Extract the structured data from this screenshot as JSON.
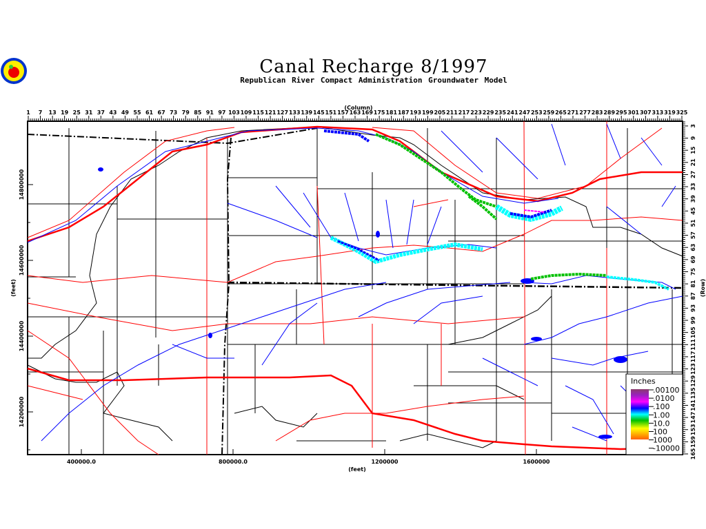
{
  "title": "Canal Recharge 8/1997",
  "subtitle": "Republican River Compact Administration Groundwater Model",
  "logo": "apple-seal-logo",
  "top_axis": {
    "label": "(Column)",
    "ticks": [
      "1",
      "7",
      "13",
      "19",
      "25",
      "31",
      "37",
      "43",
      "49",
      "55",
      "61",
      "67",
      "73",
      "79",
      "85",
      "91",
      "97",
      "103",
      "109",
      "115",
      "121",
      "127",
      "133",
      "139",
      "145",
      "151",
      "157",
      "163",
      "169",
      "175",
      "181",
      "187",
      "193",
      "199",
      "205",
      "211",
      "217",
      "223",
      "229",
      "235",
      "241",
      "247",
      "253",
      "259",
      "265",
      "271",
      "277",
      "283",
      "289",
      "295",
      "301",
      "307",
      "313",
      "319",
      "325"
    ]
  },
  "right_axis": {
    "label": "(Row)",
    "ticks": [
      "3",
      "9",
      "15",
      "21",
      "27",
      "33",
      "39",
      "45",
      "51",
      "57",
      "63",
      "69",
      "75",
      "81",
      "87",
      "93",
      "99",
      "105",
      "111",
      "117",
      "123",
      "129",
      "135",
      "141",
      "147",
      "153",
      "159",
      "165"
    ]
  },
  "left_axis": {
    "label": "(feet)",
    "ticks": [
      "14800000",
      "14600000",
      "14400000",
      "14200000"
    ]
  },
  "bottom_axis": {
    "label": "(feet)",
    "ticks": [
      "400000.0",
      "800000.0",
      "1200000",
      "1600000"
    ]
  },
  "legend": {
    "title": "Inches",
    "labels": [
      ".00100",
      ".0100",
      ".100",
      "1.00",
      "10.0",
      "100",
      "1000",
      "-10000"
    ],
    "colors": [
      "#8b3c6c",
      "#b000e0",
      "#ff00ff",
      "#0000ff",
      "#00ffff",
      "#00c000",
      "#ffff00",
      "#ff6000"
    ]
  },
  "colors": {
    "roads": "#ff0000",
    "streams": "#0000ff",
    "boundaries": "#000000"
  }
}
